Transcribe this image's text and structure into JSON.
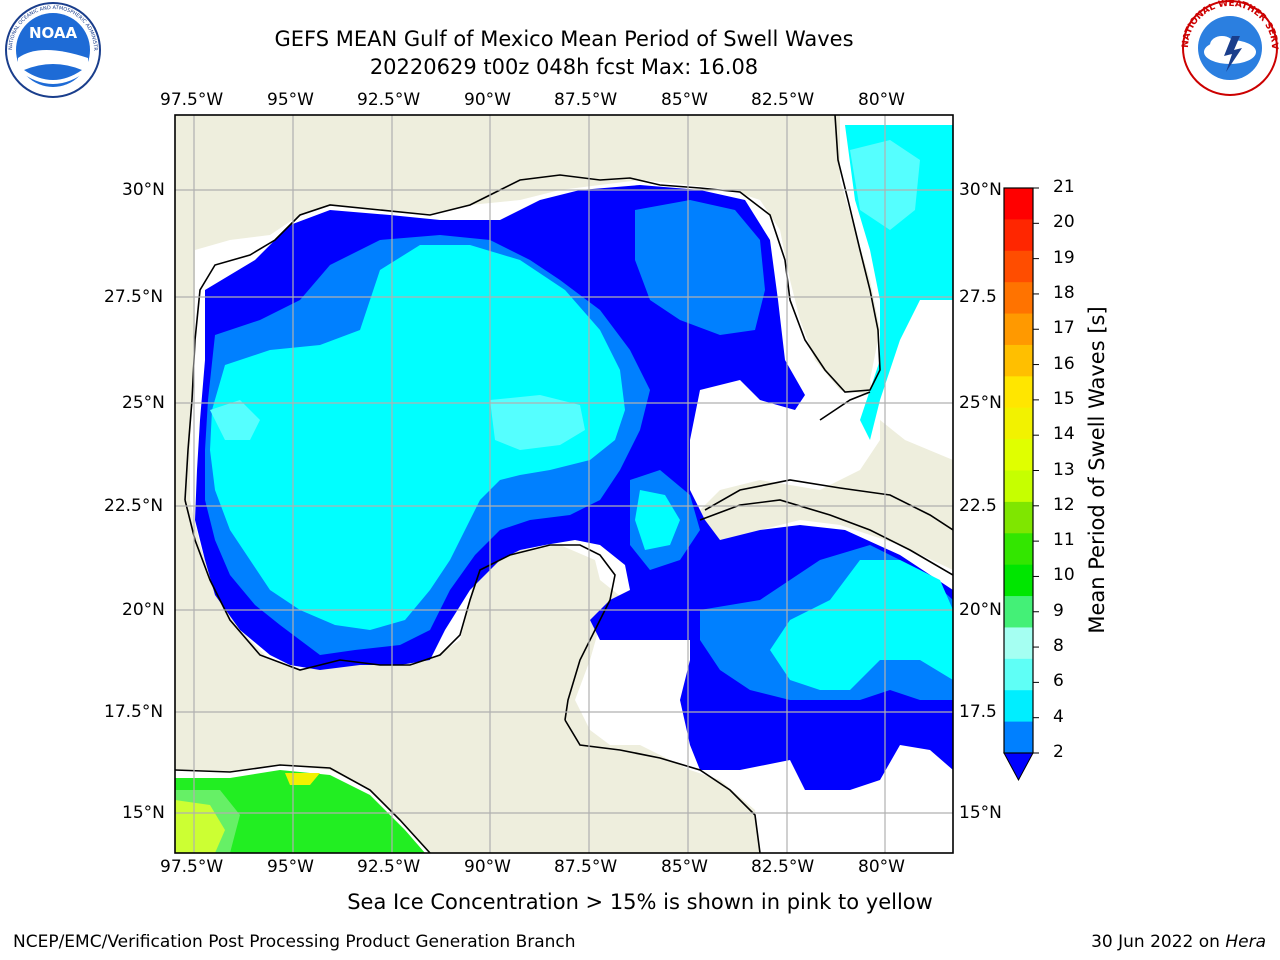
{
  "header": {
    "title": "GEFS MEAN Gulf of Mexico Mean Period of Swell Waves",
    "subtitle": "20220629 t00z 048h fcst   Max: 16.08"
  },
  "map": {
    "lon_ticks": [
      "97.5°W",
      "95°W",
      "92.5°W",
      "90°W",
      "87.5°W",
      "85°W",
      "82.5°W",
      "80°W"
    ],
    "lat_ticks_left": [
      "30°N",
      "27.5°N",
      "25°N",
      "22.5°N",
      "20°N",
      "17.5°N",
      "15°N"
    ],
    "lat_ticks_right": [
      "30°N",
      "27.5",
      "25°N",
      "22.5",
      "20°N",
      "17.5",
      "15°N"
    ],
    "extent": {
      "lon_min": -98,
      "lon_max": -78.3,
      "lat_min": 14,
      "lat_max": 31.8
    }
  },
  "colorbar": {
    "label": "Mean Period of Swell Waves [s]",
    "ticks": [
      "21",
      "20",
      "19",
      "18",
      "17",
      "16",
      "15",
      "14",
      "13",
      "12",
      "11",
      "10",
      "9",
      "8",
      "6",
      "4",
      "2"
    ],
    "colors": [
      "#ff0000",
      "#ff2600",
      "#ff4d00",
      "#ff7300",
      "#ff9900",
      "#ffbf00",
      "#ffe600",
      "#f2f200",
      "#e0ff00",
      "#c6ff00",
      "#7fe600",
      "#33e600",
      "#00e600",
      "#44f077",
      "#a5fff2",
      "#5ffff6",
      "#00eeff",
      "#0080ff"
    ]
  },
  "note": "Sea Ice Concentration > 15% is shown in pink to yellow",
  "footer": {
    "left": "NCEP/EMC/Verification Post Processing Product Generation Branch",
    "right_prefix": "30 Jun 2022 on ",
    "right_host": "Hera"
  },
  "logos": {
    "noaa": {
      "text": "NOAA",
      "ring": "NATIONAL OCEANIC AND ATMOSPHERIC ADMINISTRATION"
    },
    "nws": {
      "ring": "NATIONAL WEATHER SERVICE"
    }
  },
  "colors": {
    "land": "#eeeedd",
    "deep_blue": "#0000ff",
    "mid_blue": "#0080ff",
    "cyan": "#00ffff",
    "light_cyan": "#55ffff",
    "green": "#22ee22",
    "yellow_green": "#ccff33"
  }
}
